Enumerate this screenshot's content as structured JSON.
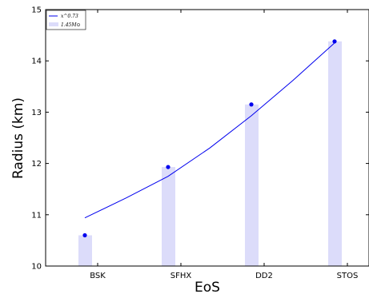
{
  "chart_data": {
    "type": "bar",
    "xlabel": "EoS",
    "ylabel": "Radius (km)",
    "categories": [
      "BSK",
      "SFHX",
      "DD2",
      "STOS"
    ],
    "ylim": [
      10,
      15
    ],
    "yticks": [
      10,
      11,
      12,
      13,
      14,
      15
    ],
    "grid": false,
    "legend_position": "top-left",
    "series": [
      {
        "name": "1.45M⊙",
        "kind": "bar",
        "color": "#dcdcfa",
        "values": [
          10.6,
          11.93,
          13.15,
          14.38
        ]
      },
      {
        "kind": "scatter",
        "color": "#0000ee",
        "values": [
          10.6,
          11.93,
          13.15,
          14.38
        ]
      },
      {
        "name": "x^0.73",
        "kind": "line",
        "color": "#0000ee",
        "x": [
          0,
          0.5,
          1,
          1.5,
          2,
          2.5,
          3
        ],
        "values": [
          10.94,
          11.33,
          11.75,
          12.3,
          12.93,
          13.62,
          14.35
        ]
      }
    ]
  }
}
